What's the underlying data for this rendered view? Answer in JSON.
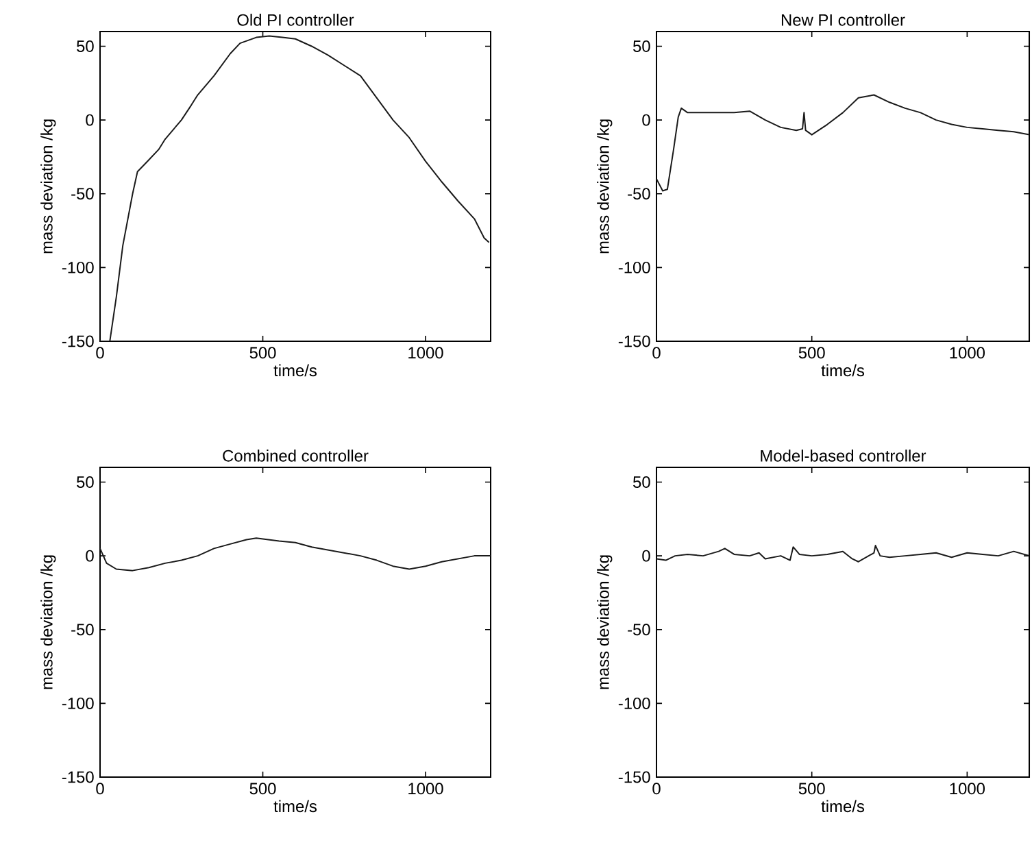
{
  "chart_data": [
    {
      "type": "line",
      "title": "Old PI controller",
      "xlabel": "time/s",
      "ylabel": "mass deviation /kg",
      "color": "#1a1a1a",
      "xlim": [
        0,
        1200
      ],
      "ylim": [
        -150,
        60
      ],
      "xticks": [
        0,
        500,
        1000
      ],
      "yticks": [
        -150,
        -100,
        -50,
        0,
        50
      ],
      "x": [
        0,
        30,
        50,
        70,
        100,
        115,
        150,
        180,
        200,
        250,
        280,
        300,
        350,
        400,
        430,
        480,
        520,
        560,
        600,
        650,
        700,
        750,
        800,
        850,
        900,
        950,
        1000,
        1050,
        1100,
        1150,
        1180,
        1195
      ],
      "values": [
        -150,
        -150,
        -120,
        -85,
        -50,
        -35,
        -27,
        -20,
        -13,
        0,
        10,
        17,
        30,
        45,
        52,
        56,
        57,
        56,
        55,
        50,
        44,
        37,
        30,
        15,
        0,
        -12,
        -28,
        -42,
        -55,
        -67,
        -80,
        -83
      ]
    },
    {
      "type": "line",
      "title": "New PI controller",
      "xlabel": "time/s",
      "ylabel": "mass deviation /kg",
      "color": "#1a1a1a",
      "xlim": [
        0,
        1200
      ],
      "ylim": [
        -150,
        60
      ],
      "xticks": [
        0,
        500,
        1000
      ],
      "yticks": [
        -150,
        -100,
        -50,
        0,
        50
      ],
      "x": [
        0,
        20,
        35,
        55,
        70,
        80,
        100,
        150,
        200,
        250,
        300,
        350,
        400,
        450,
        470,
        475,
        480,
        500,
        550,
        600,
        650,
        700,
        750,
        800,
        850,
        900,
        950,
        1000,
        1050,
        1100,
        1150,
        1200
      ],
      "values": [
        -40,
        -48,
        -47,
        -20,
        2,
        8,
        5,
        5,
        5,
        5,
        6,
        0,
        -5,
        -7,
        -6,
        5,
        -7,
        -10,
        -3,
        5,
        15,
        17,
        12,
        8,
        5,
        0,
        -3,
        -5,
        -6,
        -7,
        -8,
        -10
      ]
    },
    {
      "type": "line",
      "title": "Combined controller",
      "xlabel": "time/s",
      "ylabel": "mass deviation /kg",
      "color": "#1a1a1a",
      "xlim": [
        0,
        1200
      ],
      "ylim": [
        -150,
        60
      ],
      "xticks": [
        0,
        500,
        1000
      ],
      "yticks": [
        -150,
        -100,
        -50,
        0,
        50
      ],
      "x": [
        0,
        20,
        50,
        100,
        150,
        200,
        250,
        300,
        350,
        400,
        450,
        480,
        550,
        600,
        650,
        700,
        750,
        800,
        850,
        900,
        950,
        1000,
        1050,
        1100,
        1150,
        1200
      ],
      "values": [
        5,
        -5,
        -9,
        -10,
        -8,
        -5,
        -3,
        0,
        5,
        8,
        11,
        12,
        10,
        9,
        6,
        4,
        2,
        0,
        -3,
        -7,
        -9,
        -7,
        -4,
        -2,
        0,
        0
      ]
    },
    {
      "type": "line",
      "title": "Model-based controller",
      "xlabel": "time/s",
      "ylabel": "mass deviation /kg",
      "color": "#1a1a1a",
      "xlim": [
        0,
        1200
      ],
      "ylim": [
        -150,
        60
      ],
      "xticks": [
        0,
        500,
        1000
      ],
      "yticks": [
        -150,
        -100,
        -50,
        0,
        50
      ],
      "x": [
        0,
        30,
        60,
        100,
        150,
        200,
        220,
        250,
        300,
        330,
        350,
        400,
        430,
        440,
        460,
        500,
        550,
        600,
        630,
        650,
        700,
        705,
        720,
        750,
        800,
        850,
        900,
        950,
        1000,
        1050,
        1100,
        1150,
        1200
      ],
      "values": [
        -2,
        -3,
        0,
        1,
        0,
        3,
        5,
        1,
        0,
        2,
        -2,
        0,
        -3,
        6,
        1,
        0,
        1,
        3,
        -2,
        -4,
        2,
        7,
        0,
        -1,
        0,
        1,
        2,
        -1,
        2,
        1,
        0,
        3,
        0
      ]
    }
  ]
}
